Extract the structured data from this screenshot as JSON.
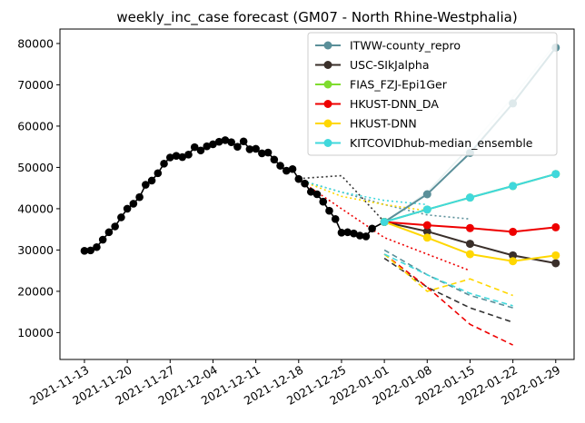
{
  "chart_data": {
    "type": "line",
    "title": "weekly_inc_case forecast (GM07 - North Rhine-Westphalia)",
    "xlabel": "",
    "ylabel": "",
    "xlim": [
      "2021-11-09",
      "2022-02-01"
    ],
    "ylim": [
      3500,
      83500
    ],
    "x_ticks": [
      "2021-11-13",
      "2021-11-20",
      "2021-11-27",
      "2021-12-04",
      "2021-12-11",
      "2021-12-18",
      "2021-12-25",
      "2022-01-01",
      "2022-01-08",
      "2022-01-15",
      "2022-01-22",
      "2022-01-29"
    ],
    "y_ticks": [
      10000,
      20000,
      30000,
      40000,
      50000,
      60000,
      70000,
      80000
    ],
    "grid": false,
    "legend_position": "top-right",
    "observed": {
      "color": "#000000",
      "points": [
        [
          "2021-11-13",
          29800
        ],
        [
          "2021-11-14",
          29900
        ],
        [
          "2021-11-15",
          30700
        ],
        [
          "2021-11-16",
          32500
        ],
        [
          "2021-11-17",
          34300
        ],
        [
          "2021-11-18",
          35700
        ],
        [
          "2021-11-19",
          37900
        ],
        [
          "2021-11-20",
          40000
        ],
        [
          "2021-11-21",
          41200
        ],
        [
          "2021-11-22",
          42800
        ],
        [
          "2021-11-23",
          45800
        ],
        [
          "2021-11-24",
          46800
        ],
        [
          "2021-11-25",
          48600
        ],
        [
          "2021-11-26",
          50900
        ],
        [
          "2021-11-27",
          52400
        ],
        [
          "2021-11-28",
          52800
        ],
        [
          "2021-11-29",
          52500
        ],
        [
          "2021-11-30",
          53100
        ],
        [
          "2021-12-01",
          54900
        ],
        [
          "2021-12-02",
          54100
        ],
        [
          "2021-12-03",
          55100
        ],
        [
          "2021-12-04",
          55600
        ],
        [
          "2021-12-05",
          56200
        ],
        [
          "2021-12-06",
          56600
        ],
        [
          "2021-12-07",
          56100
        ],
        [
          "2021-12-08",
          55000
        ],
        [
          "2021-12-09",
          56300
        ],
        [
          "2021-12-10",
          54400
        ],
        [
          "2021-12-11",
          54500
        ],
        [
          "2021-12-12",
          53400
        ],
        [
          "2021-12-13",
          53600
        ],
        [
          "2021-12-14",
          51900
        ],
        [
          "2021-12-15",
          50400
        ],
        [
          "2021-12-16",
          49200
        ],
        [
          "2021-12-17",
          49600
        ],
        [
          "2021-12-18",
          47200
        ],
        [
          "2021-12-19",
          46100
        ],
        [
          "2021-12-20",
          44100
        ],
        [
          "2021-12-21",
          43500
        ],
        [
          "2021-12-22",
          41700
        ],
        [
          "2021-12-23",
          39500
        ],
        [
          "2021-12-24",
          37500
        ],
        [
          "2021-12-25",
          34200
        ],
        [
          "2021-12-26",
          34300
        ],
        [
          "2021-12-27",
          34000
        ],
        [
          "2021-12-28",
          33500
        ],
        [
          "2021-12-29",
          33300
        ],
        [
          "2021-12-30",
          35200
        ],
        [
          "2022-01-01",
          36800
        ]
      ]
    },
    "series": [
      {
        "name": "ITWW-county_repro",
        "color": "#5a8f99",
        "x": [
          "2022-01-01",
          "2022-01-08",
          "2022-01-15",
          "2022-01-22",
          "2022-01-29"
        ],
        "values": [
          36800,
          43500,
          53500,
          65500,
          79000
        ]
      },
      {
        "name": "USC-SIkJalpha",
        "color": "#3a2f2a",
        "x": [
          "2022-01-01",
          "2022-01-08",
          "2022-01-15",
          "2022-01-22",
          "2022-01-29"
        ],
        "values": [
          36800,
          34500,
          31500,
          28700,
          26800
        ]
      },
      {
        "name": "FIAS_FZJ-Epi1Ger",
        "color": "#7fdc2f",
        "x": [
          "2022-01-01",
          "2022-01-08",
          "2022-01-15",
          "2022-01-22",
          "2022-01-29"
        ],
        "values": [
          36800,
          39800,
          42700,
          45500,
          48400
        ]
      },
      {
        "name": "HKUST-DNN_DA",
        "color": "#ee0000",
        "x": [
          "2022-01-01",
          "2022-01-08",
          "2022-01-15",
          "2022-01-22",
          "2022-01-29"
        ],
        "values": [
          36800,
          36000,
          35300,
          34400,
          35500
        ]
      },
      {
        "name": "HKUST-DNN",
        "color": "#ffd700",
        "x": [
          "2022-01-01",
          "2022-01-08",
          "2022-01-15",
          "2022-01-22",
          "2022-01-29"
        ],
        "values": [
          36800,
          33000,
          29000,
          27300,
          28700
        ]
      },
      {
        "name": "KITCOVIDhub-median_ensemble",
        "color": "#40d8dc",
        "x": [
          "2022-01-01",
          "2022-01-08",
          "2022-01-15",
          "2022-01-22",
          "2022-01-29"
        ],
        "values": [
          36800,
          39800,
          42700,
          45500,
          48400
        ]
      }
    ],
    "uncertainty_lines": [
      {
        "color": "#e8f2f2",
        "style": "solid",
        "x": [
          "2022-01-01",
          "2022-01-08",
          "2022-01-15",
          "2022-01-22",
          "2022-01-29"
        ],
        "values": [
          36800,
          44000,
          55000,
          67000,
          80000
        ]
      },
      {
        "color": "#333333",
        "style": "dotted",
        "x": [
          "2021-12-18",
          "2021-12-25",
          "2022-01-01"
        ],
        "values": [
          47300,
          48000,
          36800
        ]
      },
      {
        "color": "#333333",
        "style": "dashed",
        "x": [
          "2022-01-01",
          "2022-01-08",
          "2022-01-15",
          "2022-01-22"
        ],
        "values": [
          28000,
          21000,
          16000,
          12500
        ]
      },
      {
        "color": "#5a8f99",
        "style": "dotted",
        "x": [
          "2021-12-18",
          "2021-12-25",
          "2022-01-01",
          "2022-01-08",
          "2022-01-15"
        ],
        "values": [
          47000,
          44000,
          41000,
          38500,
          37500
        ]
      },
      {
        "color": "#5a8f99",
        "style": "dashed",
        "x": [
          "2022-01-01",
          "2022-01-08",
          "2022-01-15",
          "2022-01-22"
        ],
        "values": [
          30000,
          24000,
          19000,
          16000
        ]
      },
      {
        "color": "#ee0000",
        "style": "dotted",
        "x": [
          "2021-12-18",
          "2021-12-25",
          "2022-01-01",
          "2022-01-08",
          "2022-01-15"
        ],
        "values": [
          47000,
          40000,
          33000,
          29000,
          25000
        ]
      },
      {
        "color": "#ee0000",
        "style": "dashed",
        "x": [
          "2022-01-01",
          "2022-01-08",
          "2022-01-15",
          "2022-01-22"
        ],
        "values": [
          29000,
          21000,
          12000,
          7000
        ]
      },
      {
        "color": "#ffd700",
        "style": "dotted",
        "x": [
          "2021-12-18",
          "2021-12-25",
          "2022-01-01",
          "2022-01-08"
        ],
        "values": [
          47000,
          43000,
          41000,
          39500
        ]
      },
      {
        "color": "#ffd700",
        "style": "dashed",
        "x": [
          "2022-01-01",
          "2022-01-08",
          "2022-01-15",
          "2022-01-22"
        ],
        "values": [
          29000,
          20000,
          23000,
          19000
        ]
      },
      {
        "color": "#40d8dc",
        "style": "dotted",
        "x": [
          "2021-12-18",
          "2021-12-25",
          "2022-01-01",
          "2022-01-08"
        ],
        "values": [
          47000,
          44000,
          42000,
          41000
        ]
      },
      {
        "color": "#40d8dc",
        "style": "dashed",
        "x": [
          "2022-01-01",
          "2022-01-08",
          "2022-01-15",
          "2022-01-22"
        ],
        "values": [
          29000,
          24000,
          19500,
          16500
        ]
      }
    ]
  }
}
